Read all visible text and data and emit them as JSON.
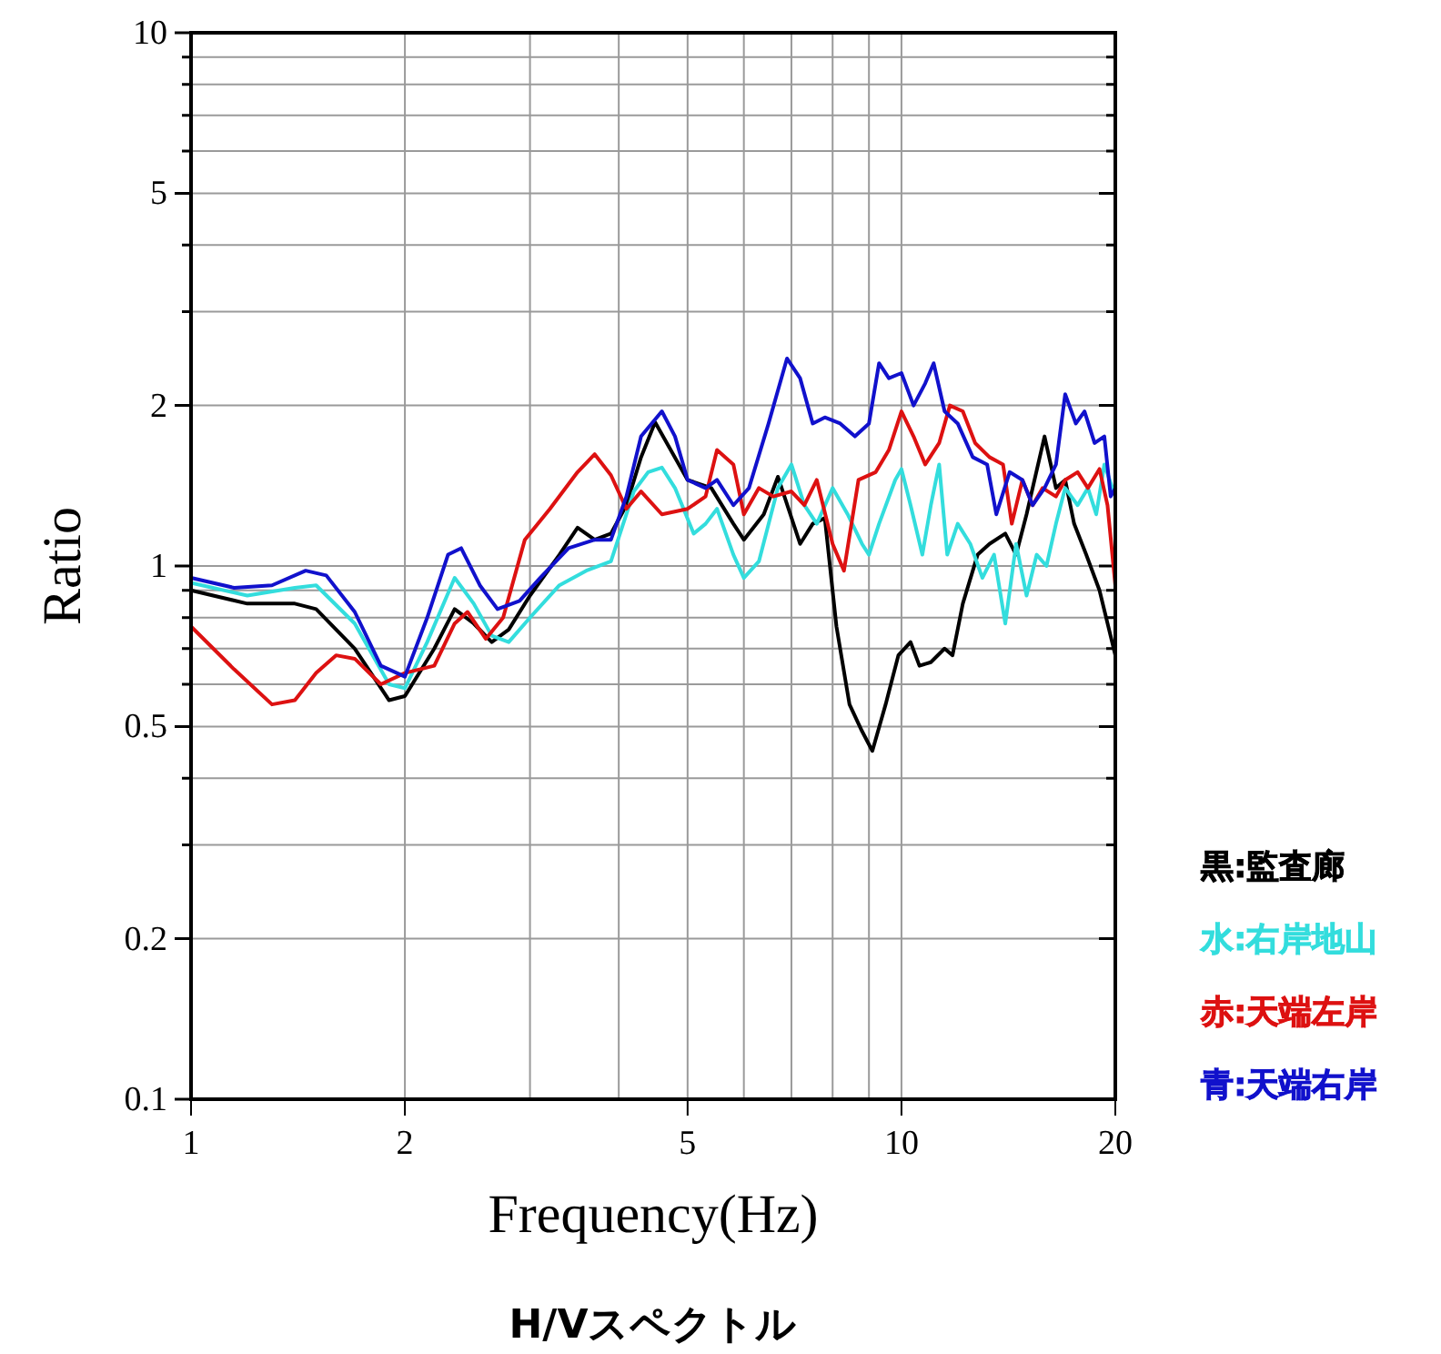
{
  "chart_data": {
    "type": "line",
    "title": "H/Vスペクトル",
    "xlabel": "Frequency(Hz)",
    "ylabel": "Ratio",
    "log": "xy",
    "grid": true,
    "legend": "right",
    "xlim": [
      1,
      20
    ],
    "ylim": [
      0.1,
      10
    ],
    "xticks": [
      1,
      2,
      5,
      10,
      20
    ],
    "yticks": [
      0.1,
      0.2,
      0.5,
      1,
      2,
      5,
      10
    ],
    "series": [
      {
        "name": "黒:監査廊",
        "color": "#000000",
        "x": [
          1.0,
          1.2,
          1.4,
          1.5,
          1.7,
          1.9,
          2.0,
          2.2,
          2.35,
          2.5,
          2.65,
          2.8,
          3.0,
          3.3,
          3.5,
          3.7,
          3.9,
          4.1,
          4.3,
          4.5,
          5.0,
          5.4,
          5.8,
          6.0,
          6.4,
          6.7,
          7.2,
          7.5,
          7.8,
          8.1,
          8.45,
          8.8,
          9.1,
          9.5,
          9.9,
          10.3,
          10.6,
          11.0,
          11.5,
          11.8,
          12.2,
          12.8,
          13.3,
          14.0,
          14.5,
          15.0,
          15.9,
          16.5,
          17.0,
          17.5,
          18.2,
          19.0,
          20.0
        ],
        "values": [
          0.9,
          0.85,
          0.85,
          0.83,
          0.7,
          0.56,
          0.57,
          0.7,
          0.83,
          0.78,
          0.72,
          0.76,
          0.88,
          1.05,
          1.18,
          1.12,
          1.15,
          1.3,
          1.6,
          1.86,
          1.45,
          1.4,
          1.2,
          1.12,
          1.25,
          1.47,
          1.1,
          1.2,
          1.23,
          0.77,
          0.55,
          0.49,
          0.45,
          0.55,
          0.68,
          0.72,
          0.65,
          0.66,
          0.7,
          0.68,
          0.85,
          1.05,
          1.1,
          1.15,
          1.05,
          1.25,
          1.75,
          1.4,
          1.45,
          1.2,
          1.05,
          0.9,
          0.68
        ]
      },
      {
        "name": "水:右岸地山",
        "color": "#33dddd",
        "x": [
          1.0,
          1.2,
          1.4,
          1.5,
          1.7,
          1.9,
          2.0,
          2.15,
          2.35,
          2.5,
          2.65,
          2.8,
          3.0,
          3.3,
          3.6,
          3.9,
          4.2,
          4.4,
          4.6,
          4.8,
          5.1,
          5.3,
          5.5,
          5.8,
          6.0,
          6.3,
          6.7,
          7.0,
          7.3,
          7.6,
          8.0,
          8.4,
          8.8,
          9.0,
          9.3,
          9.8,
          10.0,
          10.3,
          10.7,
          11.0,
          11.3,
          11.6,
          12.0,
          12.5,
          13.0,
          13.5,
          14.0,
          14.5,
          15.0,
          15.5,
          16.0,
          16.5,
          17.0,
          17.7,
          18.3,
          18.8,
          19.3,
          20.0
        ],
        "values": [
          0.93,
          0.88,
          0.91,
          0.92,
          0.78,
          0.6,
          0.59,
          0.72,
          0.95,
          0.85,
          0.74,
          0.72,
          0.8,
          0.92,
          0.98,
          1.02,
          1.38,
          1.5,
          1.53,
          1.4,
          1.15,
          1.2,
          1.28,
          1.05,
          0.95,
          1.02,
          1.4,
          1.55,
          1.3,
          1.2,
          1.4,
          1.25,
          1.1,
          1.05,
          1.2,
          1.45,
          1.52,
          1.3,
          1.05,
          1.3,
          1.55,
          1.05,
          1.2,
          1.1,
          0.95,
          1.05,
          0.78,
          1.1,
          0.88,
          1.05,
          1.0,
          1.2,
          1.4,
          1.3,
          1.4,
          1.25,
          1.55,
          1.35
        ]
      },
      {
        "name": "赤:天端左岸",
        "color": "#dd1111",
        "x": [
          1.0,
          1.15,
          1.3,
          1.4,
          1.5,
          1.6,
          1.7,
          1.85,
          2.0,
          2.2,
          2.35,
          2.45,
          2.6,
          2.75,
          2.95,
          3.2,
          3.5,
          3.7,
          3.9,
          4.1,
          4.3,
          4.6,
          5.0,
          5.3,
          5.5,
          5.8,
          6.0,
          6.3,
          6.6,
          7.0,
          7.3,
          7.6,
          8.0,
          8.3,
          8.7,
          9.2,
          9.6,
          10.0,
          10.4,
          10.8,
          11.3,
          11.7,
          12.2,
          12.7,
          13.3,
          13.9,
          14.3,
          14.8,
          15.3,
          15.8,
          16.5,
          17.0,
          17.7,
          18.3,
          19.0,
          19.5,
          20.0
        ],
        "values": [
          0.77,
          0.64,
          0.55,
          0.56,
          0.63,
          0.68,
          0.67,
          0.6,
          0.63,
          0.65,
          0.78,
          0.82,
          0.73,
          0.8,
          1.12,
          1.28,
          1.5,
          1.62,
          1.48,
          1.28,
          1.38,
          1.25,
          1.28,
          1.35,
          1.65,
          1.55,
          1.25,
          1.4,
          1.35,
          1.38,
          1.3,
          1.45,
          1.1,
          0.98,
          1.45,
          1.5,
          1.65,
          1.95,
          1.75,
          1.55,
          1.7,
          2.0,
          1.95,
          1.7,
          1.6,
          1.55,
          1.2,
          1.45,
          1.3,
          1.4,
          1.35,
          1.45,
          1.5,
          1.4,
          1.52,
          1.3,
          0.92
        ]
      },
      {
        "name": "青:天端右岸",
        "color": "#1111cc",
        "x": [
          1.0,
          1.15,
          1.3,
          1.45,
          1.55,
          1.7,
          1.85,
          2.0,
          2.15,
          2.3,
          2.4,
          2.55,
          2.7,
          2.9,
          3.1,
          3.4,
          3.7,
          3.9,
          4.1,
          4.3,
          4.6,
          4.8,
          5.0,
          5.3,
          5.5,
          5.8,
          6.1,
          6.5,
          6.9,
          7.2,
          7.5,
          7.8,
          8.2,
          8.6,
          9.0,
          9.3,
          9.6,
          10.0,
          10.4,
          10.8,
          11.1,
          11.5,
          12.0,
          12.6,
          13.2,
          13.6,
          14.2,
          14.8,
          15.3,
          15.9,
          16.5,
          17.0,
          17.6,
          18.1,
          18.7,
          19.3,
          19.7,
          20.0
        ],
        "values": [
          0.95,
          0.91,
          0.92,
          0.98,
          0.96,
          0.82,
          0.65,
          0.62,
          0.8,
          1.05,
          1.08,
          0.92,
          0.83,
          0.86,
          0.95,
          1.08,
          1.12,
          1.12,
          1.35,
          1.75,
          1.95,
          1.75,
          1.45,
          1.4,
          1.45,
          1.3,
          1.4,
          1.85,
          2.45,
          2.25,
          1.85,
          1.9,
          1.85,
          1.75,
          1.85,
          2.4,
          2.25,
          2.3,
          2.0,
          2.2,
          2.4,
          1.95,
          1.85,
          1.6,
          1.55,
          1.25,
          1.5,
          1.45,
          1.3,
          1.4,
          1.55,
          2.1,
          1.85,
          1.95,
          1.7,
          1.75,
          1.35,
          1.4
        ]
      }
    ]
  }
}
